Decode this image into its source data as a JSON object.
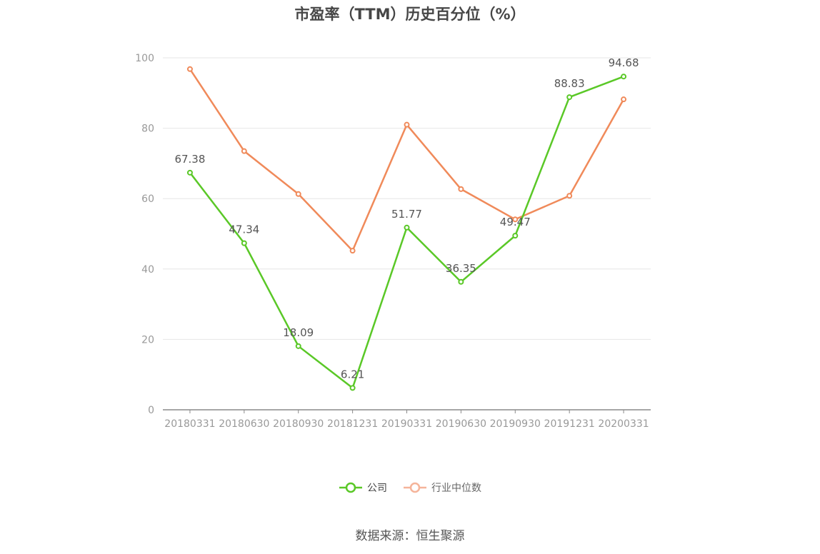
{
  "chart_data": {
    "type": "line",
    "title": "市盈率（TTM）历史百分位（%）",
    "categories": [
      "20180331",
      "20180630",
      "20180930",
      "20181231",
      "20190331",
      "20190630",
      "20190930",
      "20191231",
      "20200331"
    ],
    "ylim": [
      0,
      100
    ],
    "yticks": [
      0,
      20,
      40,
      60,
      80,
      100
    ],
    "grid": true,
    "legend_position": "bottom",
    "series": [
      {
        "name": "公司",
        "color": "#5ac827",
        "values": [
          67.38,
          47.34,
          18.09,
          6.21,
          51.77,
          36.35,
          49.47,
          88.83,
          94.68
        ],
        "labels": [
          "67.38",
          "47.34",
          "18.09",
          "6.21",
          "51.77",
          "36.35",
          "49.47",
          "88.83",
          "94.68"
        ]
      },
      {
        "name": "行业中位数",
        "color": "#f08a5a",
        "legend_color": "#f5b49a",
        "values": [
          96.8,
          73.5,
          61.3,
          45.2,
          81.0,
          62.7,
          54.1,
          60.8,
          88.2
        ]
      }
    ]
  },
  "source": "数据来源：恒生聚源"
}
